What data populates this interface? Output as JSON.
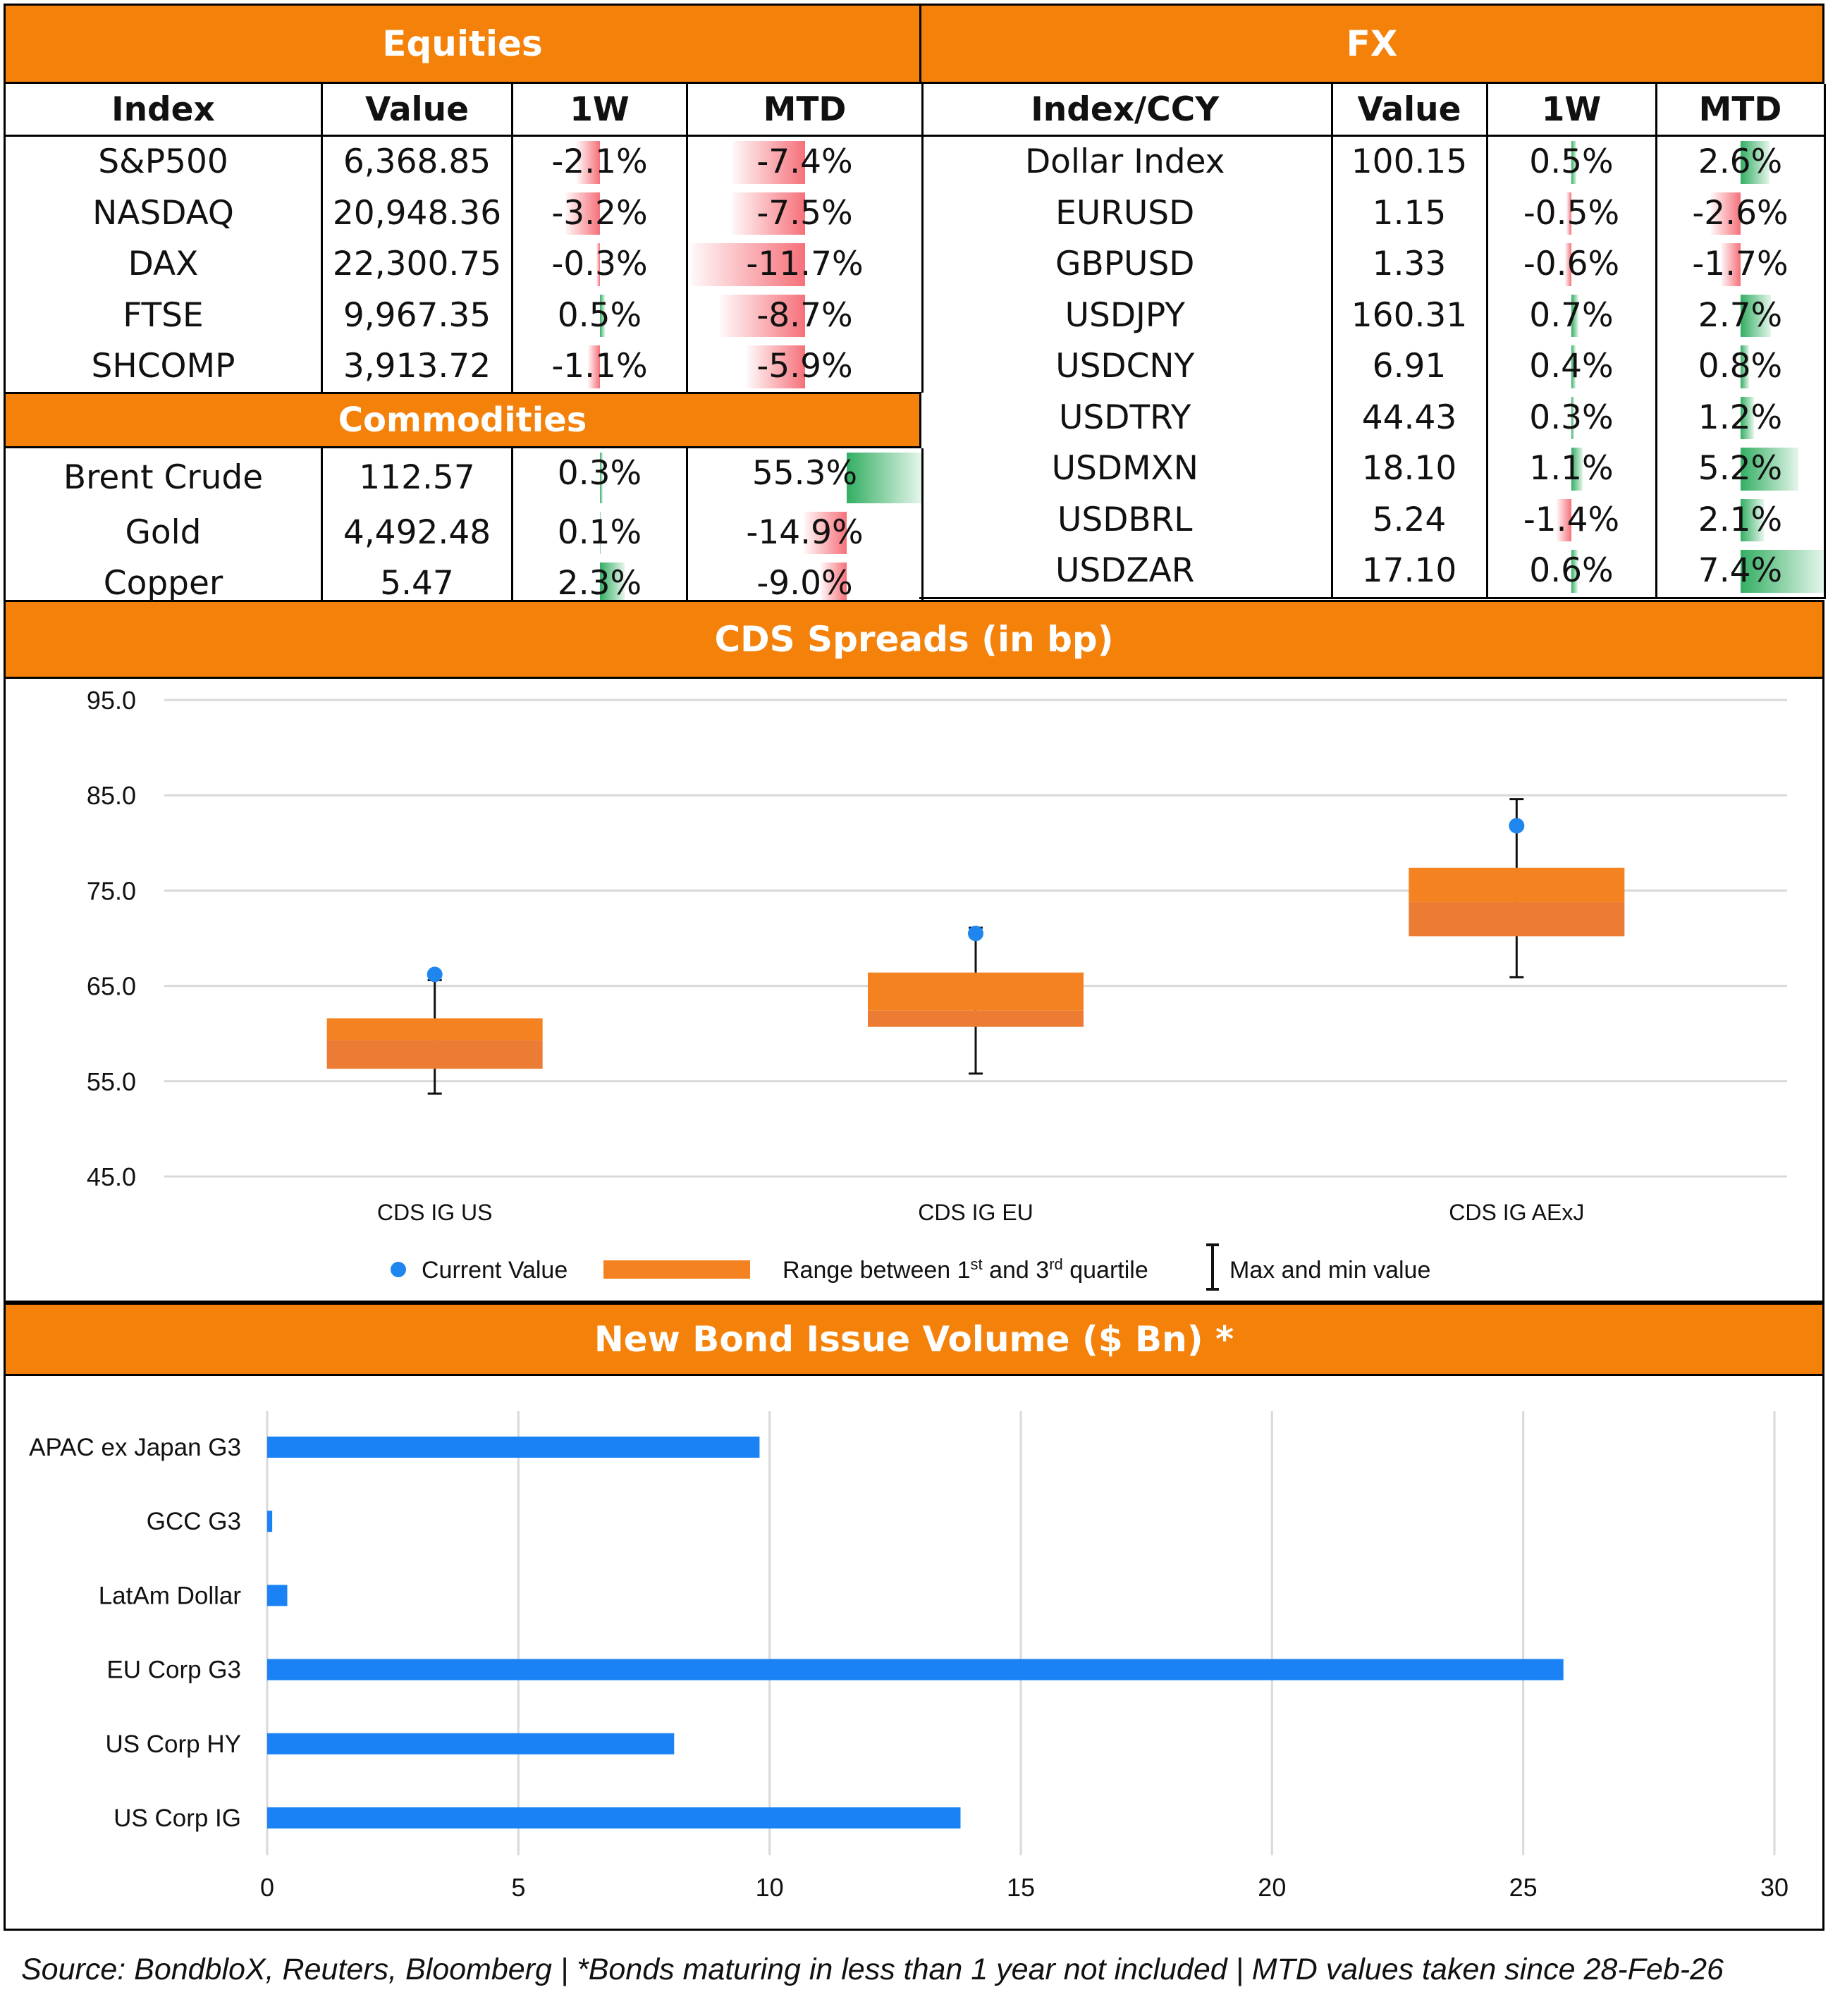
{
  "equities": {
    "title": "Equities",
    "headers": [
      "Index",
      "Value",
      "1W",
      "MTD"
    ],
    "rows": [
      {
        "name": "S&P500",
        "value": "6,368.85",
        "w1": "-2.1%",
        "mtd": "-7.4%",
        "w1_num": -2.1,
        "mtd_num": -7.4
      },
      {
        "name": "NASDAQ",
        "value": "20,948.36",
        "w1": "-3.2%",
        "mtd": "-7.5%",
        "w1_num": -3.2,
        "mtd_num": -7.5
      },
      {
        "name": "DAX",
        "value": "22,300.75",
        "w1": "-0.3%",
        "mtd": "-11.7%",
        "w1_num": -0.3,
        "mtd_num": -11.7
      },
      {
        "name": "FTSE",
        "value": "9,967.35",
        "w1": "0.5%",
        "mtd": "-8.7%",
        "w1_num": 0.5,
        "mtd_num": -8.7
      },
      {
        "name": "SHCOMP",
        "value": "3,913.72",
        "w1": "-1.1%",
        "mtd": "-5.9%",
        "w1_num": -1.1,
        "mtd_num": -5.9
      }
    ]
  },
  "commodities": {
    "title": "Commodities",
    "rows": [
      {
        "name": "Brent Crude",
        "value": "112.57",
        "w1": "0.3%",
        "mtd": "55.3%",
        "w1_num": 0.3,
        "mtd_num": 55.3
      },
      {
        "name": "Gold",
        "value": "4,492.48",
        "w1": "0.1%",
        "mtd": "-14.9%",
        "w1_num": 0.1,
        "mtd_num": -14.9
      },
      {
        "name": "Copper",
        "value": "5.47",
        "w1": "2.3%",
        "mtd": "-9.0%",
        "w1_num": 2.3,
        "mtd_num": -9.0
      }
    ]
  },
  "fx": {
    "title": "FX",
    "headers": [
      "Index/CCY",
      "Value",
      "1W",
      "MTD"
    ],
    "rows": [
      {
        "name": "Dollar Index",
        "value": "100.15",
        "w1": "0.5%",
        "mtd": "2.6%",
        "w1_num": 0.5,
        "mtd_num": 2.6
      },
      {
        "name": "EURUSD",
        "value": "1.15",
        "w1": "-0.5%",
        "mtd": "-2.6%",
        "w1_num": -0.5,
        "mtd_num": -2.6
      },
      {
        "name": "GBPUSD",
        "value": "1.33",
        "w1": "-0.6%",
        "mtd": "-1.7%",
        "w1_num": -0.6,
        "mtd_num": -1.7
      },
      {
        "name": "USDJPY",
        "value": "160.31",
        "w1": "0.7%",
        "mtd": "2.7%",
        "w1_num": 0.7,
        "mtd_num": 2.7
      },
      {
        "name": "USDCNY",
        "value": "6.91",
        "w1": "0.4%",
        "mtd": "0.8%",
        "w1_num": 0.4,
        "mtd_num": 0.8
      },
      {
        "name": "USDTRY",
        "value": "44.43",
        "w1": "0.3%",
        "mtd": "1.2%",
        "w1_num": 0.3,
        "mtd_num": 1.2
      },
      {
        "name": "USDMXN",
        "value": "18.10",
        "w1": "1.1%",
        "mtd": "5.2%",
        "w1_num": 1.1,
        "mtd_num": 5.2
      },
      {
        "name": "USDBRL",
        "value": "5.24",
        "w1": "-1.4%",
        "mtd": "2.1%",
        "w1_num": -1.4,
        "mtd_num": 2.1
      },
      {
        "name": "USDZAR",
        "value": "17.10",
        "w1": "0.6%",
        "mtd": "7.4%",
        "w1_num": 0.6,
        "mtd_num": 7.4
      }
    ]
  },
  "cds_title": "CDS Spreads (in bp)",
  "bond_title": "New Bond Issue Volume ($ Bn) *",
  "footer": "Source: BondbloX, Reuters, Bloomberg | *Bonds maturing in less than 1 year not included | MTD values taken since 28-Feb-26",
  "colors": {
    "orange": "#f4810a",
    "box_top": "#f58220",
    "box_bottom": "#ec7c33",
    "dot": "#1f86f0",
    "bar": "#1a82f5",
    "grid": "#d9d9d9"
  },
  "chart_data": [
    {
      "type": "box",
      "title": "CDS Spreads (in bp)",
      "categories": [
        "CDS IG US",
        "CDS IG EU",
        "CDS IG AExJ"
      ],
      "q1": [
        56.3,
        60.7,
        70.2
      ],
      "median": [
        59.3,
        62.4,
        73.8
      ],
      "q3": [
        61.6,
        66.4,
        77.4
      ],
      "min": [
        53.7,
        55.8,
        65.9
      ],
      "max": [
        65.6,
        71.1,
        84.6
      ],
      "current": [
        66.2,
        70.5,
        81.8
      ],
      "ylim": [
        45,
        95
      ],
      "yticks": [
        "95.0",
        "85.0",
        "75.0",
        "65.0",
        "55.0",
        "45.0"
      ],
      "ytick_values": [
        95,
        85,
        75,
        65,
        55,
        45
      ],
      "legend": {
        "current": "Current Value",
        "range": "Range between 1st and 3rd quartile",
        "range_pre": "Range between 1",
        "range_sup1": "st",
        "range_mid": " and 3",
        "range_sup2": "rd",
        "range_post": " quartile",
        "minmax": "Max and min value"
      }
    },
    {
      "type": "bar",
      "orientation": "horizontal",
      "title": "New Bond Issue Volume ($ Bn) *",
      "categories": [
        "APAC ex Japan G3",
        "GCC G3",
        "LatAm Dollar",
        "EU Corp G3",
        "US Corp HY",
        "US Corp IG"
      ],
      "values": [
        9.8,
        0.1,
        0.4,
        25.8,
        8.1,
        13.8
      ],
      "xlim": [
        0,
        30
      ],
      "xticks": [
        "0",
        "5",
        "10",
        "15",
        "20",
        "25",
        "30"
      ],
      "xtick_values": [
        0,
        5,
        10,
        15,
        20,
        25,
        30
      ]
    }
  ]
}
